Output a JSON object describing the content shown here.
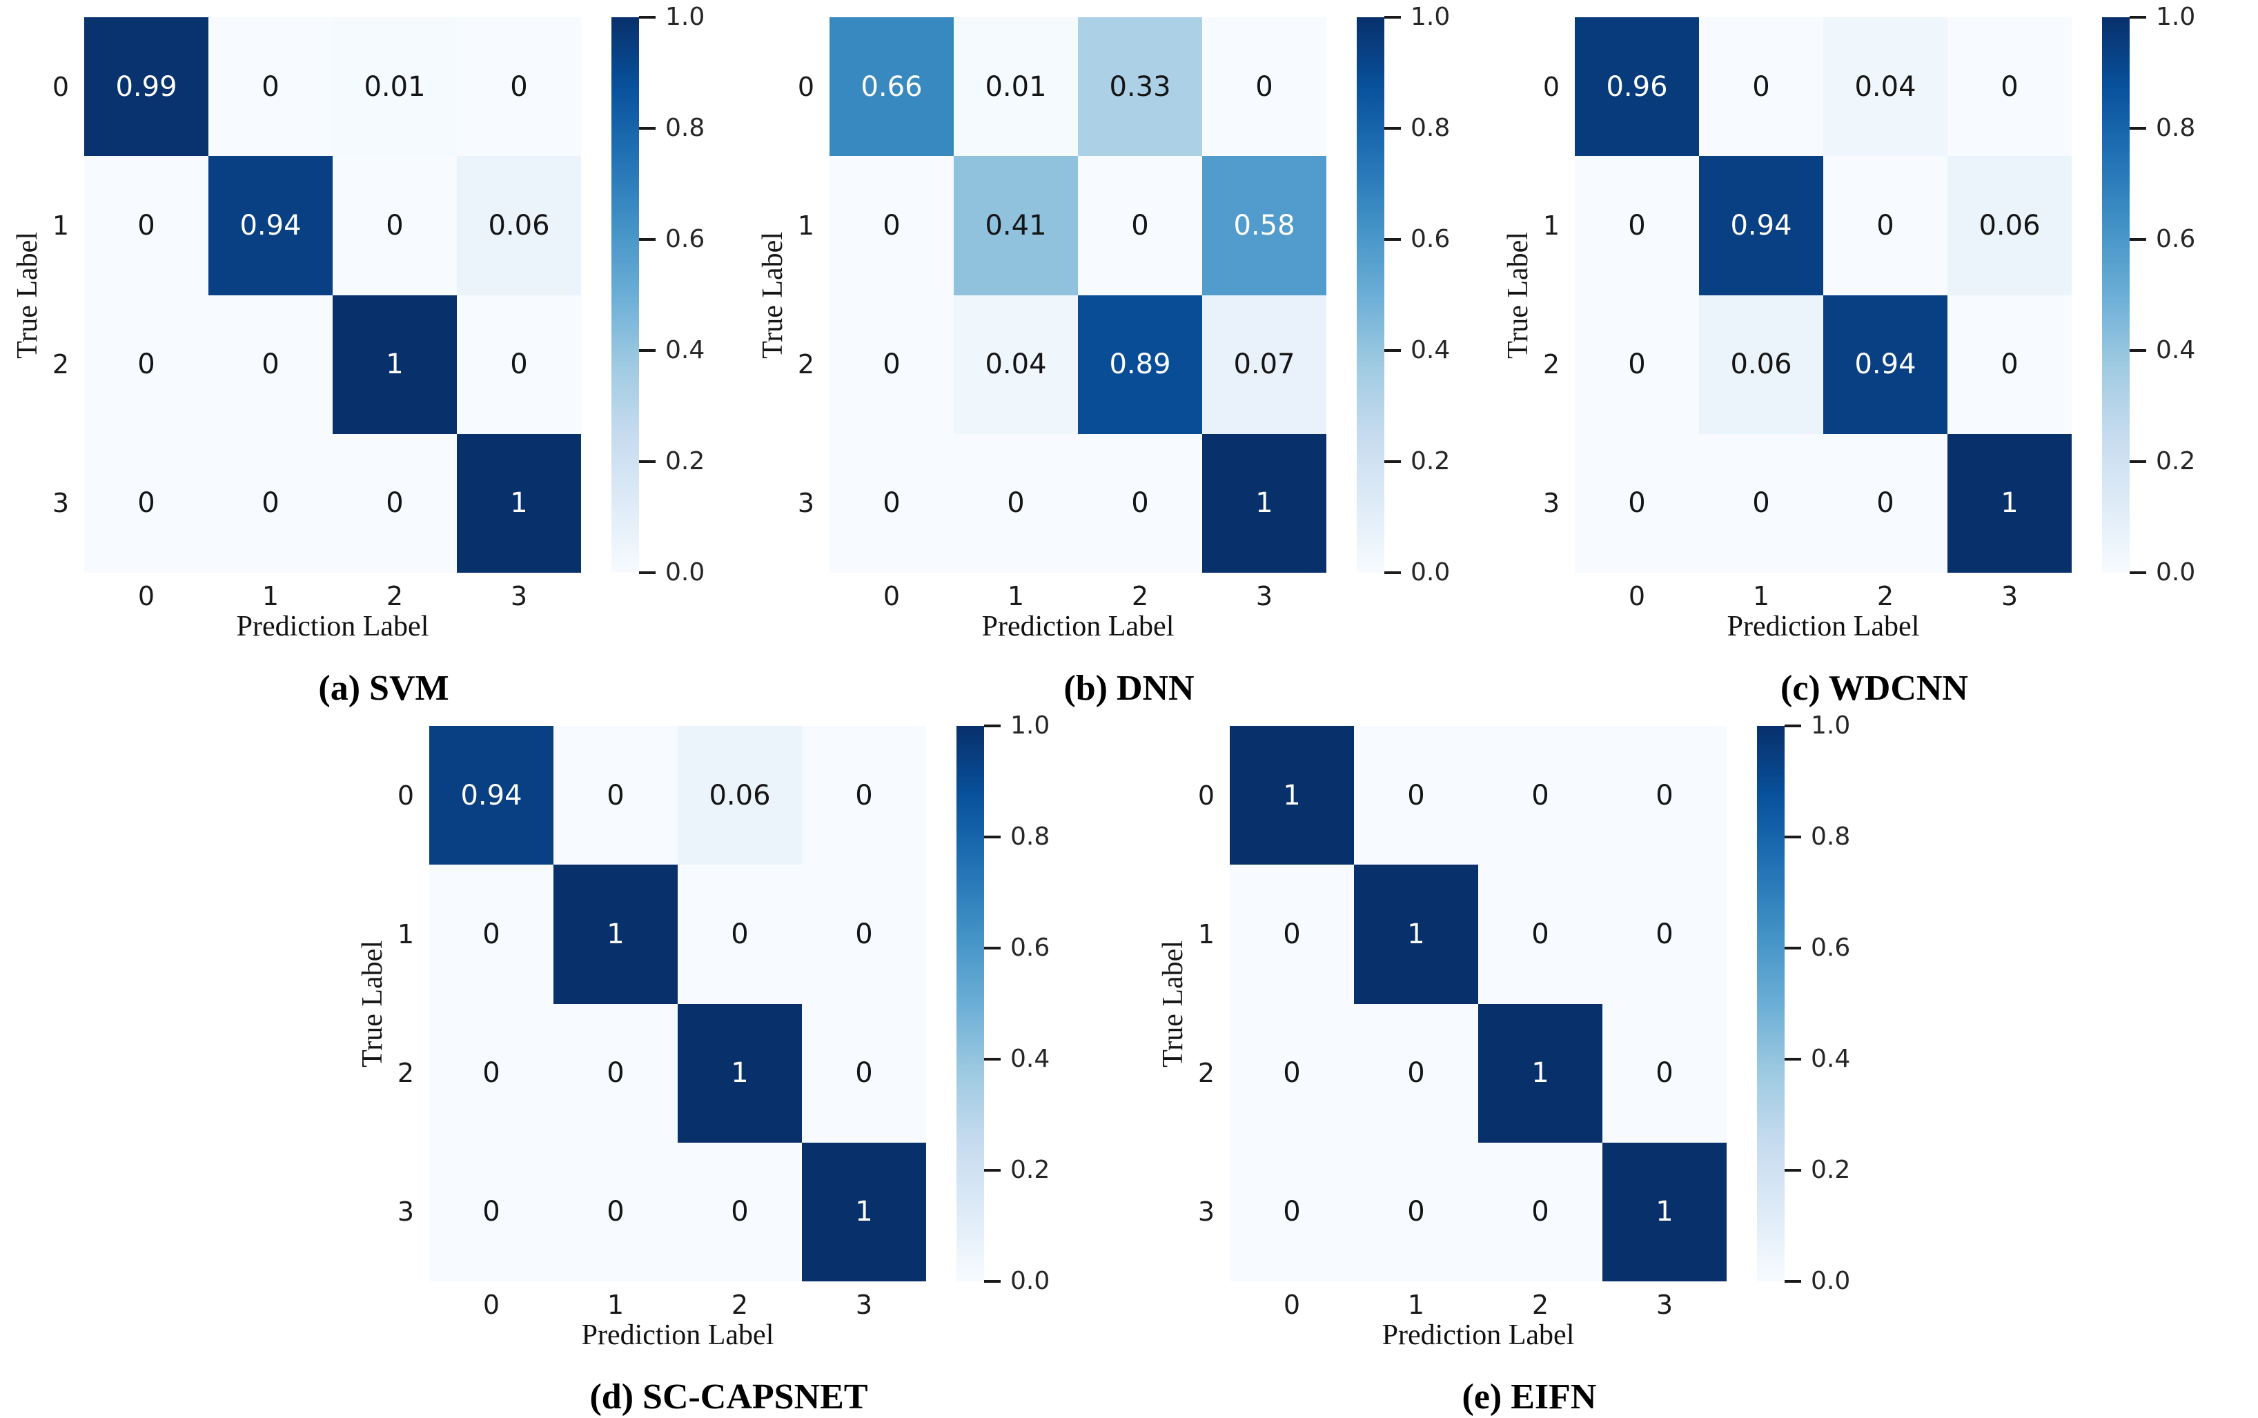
{
  "figure": {
    "background": "#ffffff",
    "description_rows": 2
  },
  "colormap": {
    "name": "Blues",
    "min_hex": "#f7fbff",
    "max_hex": "#08306b"
  },
  "annotation_colors": {
    "on_light_cells": "#151515",
    "on_dark_cells": "#ffffff"
  },
  "layout_rows": [
    [
      "svm",
      "dnn",
      "wdcnn"
    ],
    [
      "sc-capsnet",
      "eifn"
    ]
  ],
  "chart_data": [
    {
      "id": "svm",
      "type": "heatmap",
      "caption": "(a) SVM",
      "xlabel": "Prediction Label",
      "ylabel": "True Label",
      "x_tick_labels": [
        "0",
        "1",
        "2",
        "3"
      ],
      "y_tick_labels": [
        "0",
        "1",
        "2",
        "3"
      ],
      "matrix": [
        [
          0.99,
          0,
          0.01,
          0
        ],
        [
          0,
          0.94,
          0,
          0.06
        ],
        [
          0,
          0,
          1,
          0
        ],
        [
          0,
          0,
          0,
          1
        ]
      ],
      "value_range": [
        0,
        1
      ],
      "colorbar_tick_labels": [
        "1.0",
        "0.8",
        "0.6",
        "0.4",
        "0.2",
        "0.0"
      ]
    },
    {
      "id": "dnn",
      "type": "heatmap",
      "caption": "(b) DNN",
      "xlabel": "Prediction Label",
      "ylabel": "True Label",
      "x_tick_labels": [
        "0",
        "1",
        "2",
        "3"
      ],
      "y_tick_labels": [
        "0",
        "1",
        "2",
        "3"
      ],
      "matrix": [
        [
          0.66,
          0.01,
          0.33,
          0
        ],
        [
          0,
          0.41,
          0,
          0.58
        ],
        [
          0,
          0.04,
          0.89,
          0.07
        ],
        [
          0,
          0,
          0,
          1
        ]
      ],
      "value_range": [
        0,
        1
      ],
      "colorbar_tick_labels": [
        "1.0",
        "0.8",
        "0.6",
        "0.4",
        "0.2",
        "0.0"
      ]
    },
    {
      "id": "wdcnn",
      "type": "heatmap",
      "caption": "(c) WDCNN",
      "xlabel": "Prediction Label",
      "ylabel": "True Label",
      "x_tick_labels": [
        "0",
        "1",
        "2",
        "3"
      ],
      "y_tick_labels": [
        "0",
        "1",
        "2",
        "3"
      ],
      "matrix": [
        [
          0.96,
          0,
          0.04,
          0
        ],
        [
          0,
          0.94,
          0,
          0.06
        ],
        [
          0,
          0.06,
          0.94,
          0
        ],
        [
          0,
          0,
          0,
          1
        ]
      ],
      "value_range": [
        0,
        1
      ],
      "colorbar_tick_labels": [
        "1.0",
        "0.8",
        "0.6",
        "0.4",
        "0.2",
        "0.0"
      ]
    },
    {
      "id": "sc-capsnet",
      "type": "heatmap",
      "caption": "(d) SC-CAPSNET",
      "xlabel": "Prediction Label",
      "ylabel": "True Label",
      "x_tick_labels": [
        "0",
        "1",
        "2",
        "3"
      ],
      "y_tick_labels": [
        "0",
        "1",
        "2",
        "3"
      ],
      "matrix": [
        [
          0.94,
          0,
          0.06,
          0
        ],
        [
          0,
          1,
          0,
          0
        ],
        [
          0,
          0,
          1,
          0
        ],
        [
          0,
          0,
          0,
          1
        ]
      ],
      "value_range": [
        0,
        1
      ],
      "colorbar_tick_labels": [
        "1.0",
        "0.8",
        "0.6",
        "0.4",
        "0.2",
        "0.0"
      ]
    },
    {
      "id": "eifn",
      "type": "heatmap",
      "caption": "(e) EIFN",
      "xlabel": "Prediction Label",
      "ylabel": "True Label",
      "x_tick_labels": [
        "0",
        "1",
        "2",
        "3"
      ],
      "y_tick_labels": [
        "0",
        "1",
        "2",
        "3"
      ],
      "matrix": [
        [
          1,
          0,
          0,
          0
        ],
        [
          0,
          1,
          0,
          0
        ],
        [
          0,
          0,
          1,
          0
        ],
        [
          0,
          0,
          0,
          1
        ]
      ],
      "value_range": [
        0,
        1
      ],
      "colorbar_tick_labels": [
        "1.0",
        "0.8",
        "0.6",
        "0.4",
        "0.2",
        "0.0"
      ]
    }
  ]
}
